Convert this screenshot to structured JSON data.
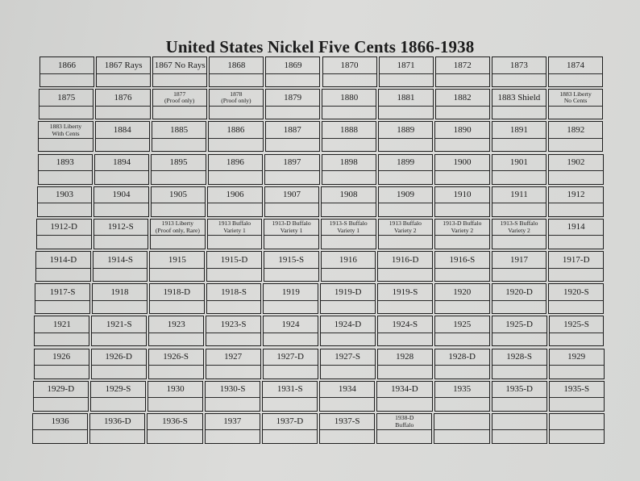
{
  "title": "United States Nickel Five Cents 1866-1938",
  "rows": [
    [
      "1866",
      "1867 Rays",
      "1867 No Rays",
      "1868",
      "1869",
      "1870",
      "1871",
      "1872",
      "1873",
      "1874"
    ],
    [
      "1875",
      "1876",
      "1877\n(Proof only)",
      "1878\n(Proof only)",
      "1879",
      "1880",
      "1881",
      "1882",
      "1883 Shield",
      "1883 Liberty\nNo Cents"
    ],
    [
      "1883 Liberty\nWith Cents",
      "1884",
      "1885",
      "1886",
      "1887",
      "1888",
      "1889",
      "1890",
      "1891",
      "1892"
    ],
    [
      "1893",
      "1894",
      "1895",
      "1896",
      "1897",
      "1898",
      "1899",
      "1900",
      "1901",
      "1902"
    ],
    [
      "1903",
      "1904",
      "1905",
      "1906",
      "1907",
      "1908",
      "1909",
      "1910",
      "1911",
      "1912"
    ],
    [
      "1912-D",
      "1912-S",
      "1913 Liberty\n(Proof only, Rare)",
      "1913 Buffalo\nVariety 1",
      "1913-D Buffalo\nVariety 1",
      "1913-S Buffalo\nVariety 1",
      "1913 Buffalo\nVariety 2",
      "1913-D Buffalo\nVariety 2",
      "1913-S Buffalo\nVariety 2",
      "1914"
    ],
    [
      "1914-D",
      "1914-S",
      "1915",
      "1915-D",
      "1915-S",
      "1916",
      "1916-D",
      "1916-S",
      "1917",
      "1917-D"
    ],
    [
      "1917-S",
      "1918",
      "1918-D",
      "1918-S",
      "1919",
      "1919-D",
      "1919-S",
      "1920",
      "1920-D",
      "1920-S"
    ],
    [
      "1921",
      "1921-S",
      "1923",
      "1923-S",
      "1924",
      "1924-D",
      "1924-S",
      "1925",
      "1925-D",
      "1925-S"
    ],
    [
      "1926",
      "1926-D",
      "1926-S",
      "1927",
      "1927-D",
      "1927-S",
      "1928",
      "1928-D",
      "1928-S",
      "1929"
    ],
    [
      "1929-D",
      "1929-S",
      "1930",
      "1930-S",
      "1931-S",
      "1934",
      "1934-D",
      "1935",
      "1935-D",
      "1935-S"
    ],
    [
      "1936",
      "1936-D",
      "1936-S",
      "1937",
      "1937-D",
      "1937-S",
      "1938-D\nBuffalo",
      "",
      "",
      ""
    ]
  ]
}
